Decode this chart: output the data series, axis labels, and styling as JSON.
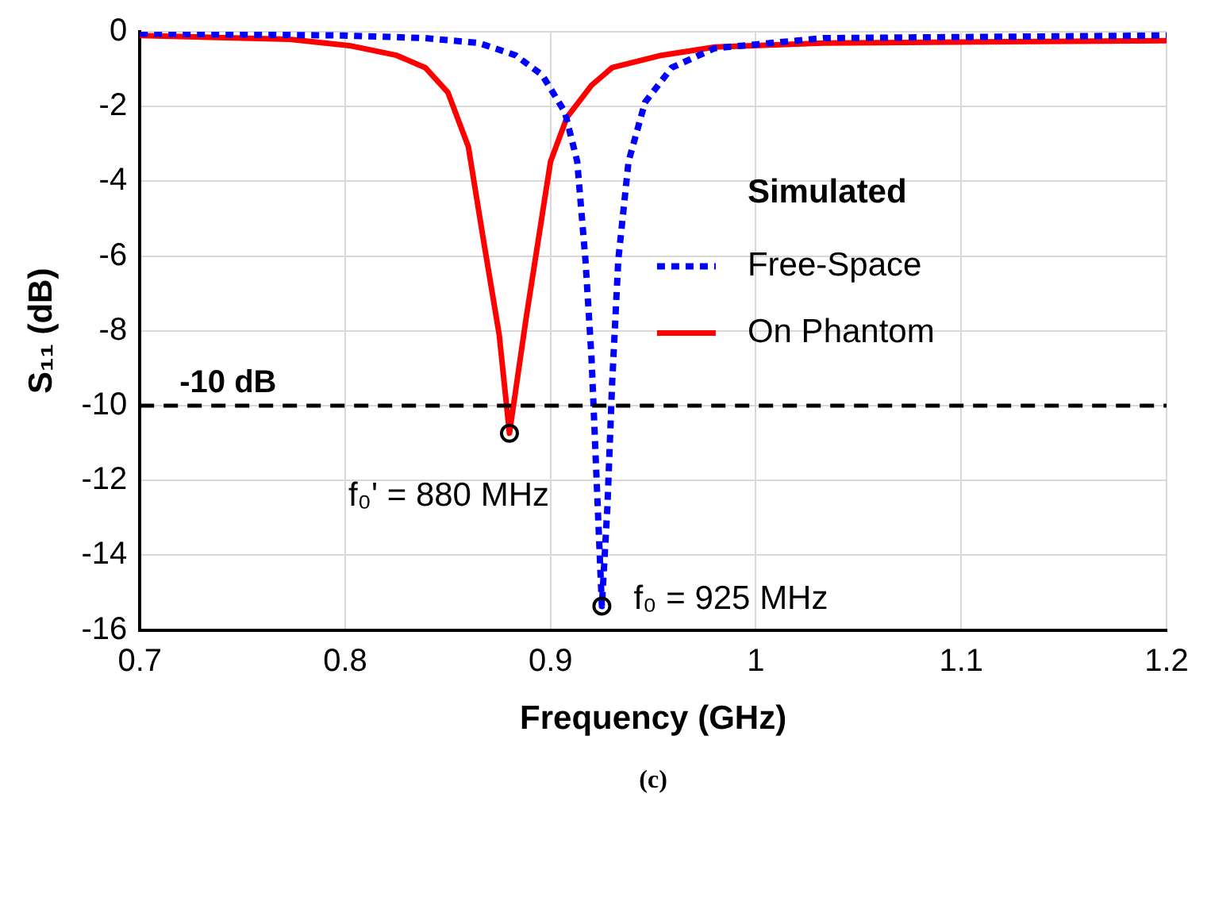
{
  "chart_data": {
    "type": "line",
    "xlabel": "Frequency (GHz)",
    "ylabel": "S₁₁ (dB)",
    "legend_title": "Simulated",
    "xlim": [
      0.7,
      1.2
    ],
    "xticks": [
      0.7,
      0.8,
      0.9,
      1,
      1.1,
      1.2
    ],
    "ylim": [
      -16,
      0
    ],
    "yticks": [
      -16,
      -14,
      -12,
      -10,
      -8,
      -6,
      -4,
      -2,
      0
    ],
    "grid": true,
    "legend": "right",
    "marker": "none",
    "series": [
      {
        "name": "Free-Space",
        "color": "#0000ff",
        "line_style": "dotted",
        "x": [
          0.7,
          0.799,
          0.839,
          0.865,
          0.883,
          0.896,
          0.907,
          0.913,
          0.917,
          0.92,
          0.922,
          0.925,
          0.9277,
          0.93,
          0.933,
          0.938,
          0.946,
          0.959,
          0.98,
          1.033,
          1.2
        ],
        "values": [
          -0.05,
          -0.1,
          -0.17,
          -0.3,
          -0.63,
          -1.16,
          -2.15,
          -3.47,
          -6.1,
          -8.76,
          -11.4,
          -15.36,
          -12.7,
          -9.4,
          -6.1,
          -3.47,
          -1.89,
          -0.96,
          -0.44,
          -0.17,
          -0.1
        ]
      },
      {
        "name": "On Phantom",
        "color": "#ff0000",
        "line_style": "solid",
        "x": [
          0.7,
          0.773,
          0.802,
          0.825,
          0.839,
          0.85,
          0.86,
          0.867,
          0.875,
          0.88,
          0.888,
          0.9,
          0.908,
          0.92,
          0.93,
          0.954,
          0.98,
          1.033,
          1.2
        ],
        "values": [
          -0.1,
          -0.2,
          -0.37,
          -0.63,
          -0.96,
          -1.62,
          -3.08,
          -5.46,
          -8.1,
          -10.74,
          -7.7,
          -3.47,
          -2.29,
          -1.43,
          -0.96,
          -0.63,
          -0.41,
          -0.3,
          -0.24
        ]
      }
    ],
    "ref_lines": [
      {
        "axis": "y",
        "value": -10,
        "label": "-10 dB",
        "color": "#000000",
        "line_style": "dashed"
      }
    ],
    "annotations": [
      {
        "text": "f₀' = 880 MHz",
        "x": 0.88,
        "y": -10.74
      },
      {
        "text": "f₀ = 925 MHz",
        "x": 0.925,
        "y": -15.36
      },
      "(c)"
    ]
  }
}
